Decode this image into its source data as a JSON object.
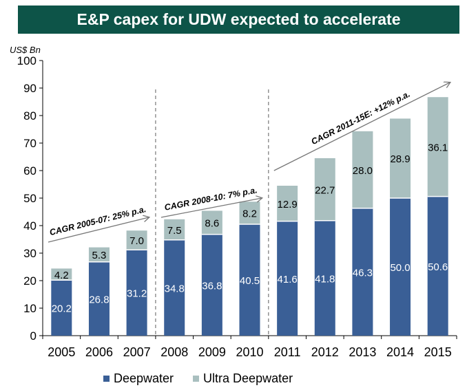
{
  "chart_data": {
    "type": "bar",
    "stacked": true,
    "title": "E&P capex for UDW expected to accelerate",
    "ylabel": "US$ Bn",
    "xlabel": "",
    "ylim": [
      0,
      100
    ],
    "yticks": [
      0,
      10,
      20,
      30,
      40,
      50,
      60,
      70,
      80,
      90,
      100
    ],
    "grid": false,
    "legend": "bottom",
    "categories": [
      "2005",
      "2006",
      "2007",
      "2008",
      "2009",
      "2010",
      "2011",
      "2012",
      "2013",
      "2014",
      "2015"
    ],
    "series": [
      {
        "name": "Deepwater",
        "color": "#3a5f96",
        "values": [
          20.2,
          26.8,
          31.2,
          34.8,
          36.8,
          40.5,
          41.6,
          41.8,
          46.3,
          50.0,
          50.6
        ]
      },
      {
        "name": "Ultra Deepwater",
        "color": "#a9bfbf",
        "values": [
          4.2,
          5.3,
          7.0,
          7.5,
          8.6,
          8.2,
          12.9,
          22.7,
          28.0,
          28.9,
          36.1
        ]
      }
    ],
    "value_labels": {
      "Deepwater": [
        "20.2",
        "26.8",
        "31.2",
        "34.8",
        "36.8",
        "40.5",
        "41.6",
        "41.8",
        "46.3",
        "50.0",
        "50.6"
      ],
      "Ultra Deepwater": [
        "4.2",
        "5.3",
        "7.0",
        "7.5",
        "8.6",
        "8.2",
        "12.9",
        "22.7",
        "28.0",
        "28.9",
        "36.1"
      ]
    },
    "annotations": [
      {
        "text": "CAGR 2005-07: 25% p.a.",
        "from_category": "2005",
        "to_category": "2007",
        "y_start": 34,
        "y_end": 43
      },
      {
        "text": "CAGR 2008-10: 7% p.a.",
        "from_category": "2008",
        "to_category": "2010",
        "y_start": 43,
        "y_end": 50
      },
      {
        "text": "CAGR 2011-15E: +12% p.a.",
        "from_category": "2011",
        "to_category": "2015",
        "y_start": 60,
        "y_end": 92
      }
    ],
    "dividers_after": [
      "2007",
      "2010"
    ]
  }
}
